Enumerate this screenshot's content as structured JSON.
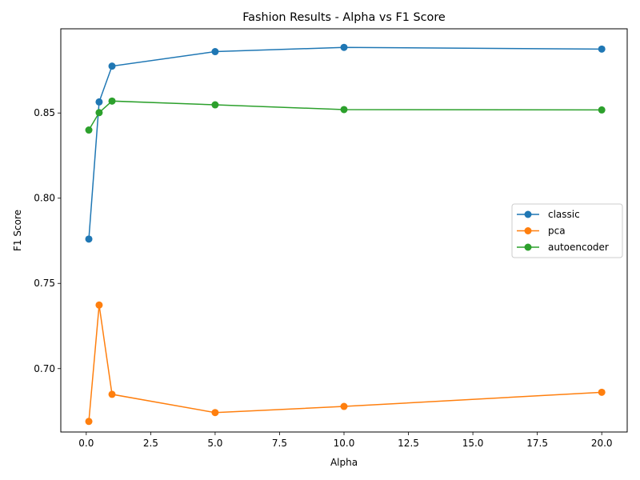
{
  "chart_data": {
    "type": "line",
    "title": "Fashion Results - Alpha vs F1 Score",
    "xlabel": "Alpha",
    "ylabel": "F1 Score",
    "xlim": [
      -0.9875,
      20.9875
    ],
    "ylim": [
      0.6628,
      0.8994
    ],
    "xticks": [
      0.0,
      2.5,
      5.0,
      7.5,
      10.0,
      12.5,
      15.0,
      17.5,
      20.0
    ],
    "xtick_labels": [
      "0.0",
      "2.5",
      "5.0",
      "7.5",
      "10.0",
      "12.5",
      "15.0",
      "17.5",
      "20.0"
    ],
    "yticks": [
      0.7,
      0.75,
      0.8,
      0.85
    ],
    "ytick_labels": [
      "0.70",
      "0.75",
      "0.80",
      "0.85"
    ],
    "grid": false,
    "legend_position": "center-right",
    "x": [
      0.1,
      0.5,
      1.0,
      5.0,
      10.0,
      20.0
    ],
    "series": [
      {
        "name": "classic",
        "color": "#1f77b4",
        "values": [
          0.776,
          0.8565,
          0.8775,
          0.886,
          0.8885,
          0.8875
        ]
      },
      {
        "name": "pca",
        "color": "#ff7f0e",
        "values": [
          0.669,
          0.7373,
          0.6849,
          0.6742,
          0.6778,
          0.6861
        ]
      },
      {
        "name": "autoencoder",
        "color": "#2ca02c",
        "values": [
          0.84,
          0.8502,
          0.857,
          0.8548,
          0.852,
          0.8518
        ]
      }
    ]
  }
}
